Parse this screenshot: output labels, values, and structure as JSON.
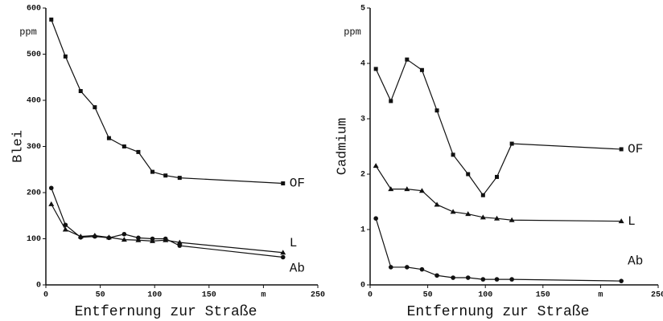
{
  "chart_data": [
    {
      "type": "line",
      "ylabel": "Blei",
      "xlabel": "Entfernung zur Straße",
      "unit_label": "ppm",
      "x": [
        5,
        18,
        32,
        45,
        58,
        72,
        85,
        98,
        110,
        123,
        218
      ],
      "xlim": [
        0,
        250
      ],
      "xticks": [
        0,
        50,
        100,
        150,
        {
          "value": 200,
          "label": "m"
        },
        250
      ],
      "ylim": [
        0,
        600
      ],
      "yticks": [
        0,
        100,
        200,
        300,
        400,
        500,
        600
      ],
      "series": [
        {
          "name": "OF",
          "color": "#111111",
          "marker": "square",
          "values": [
            575,
            495,
            420,
            385,
            318,
            300,
            288,
            245,
            237,
            232,
            220
          ]
        },
        {
          "name": "L",
          "color": "#111111",
          "marker": "triangle",
          "values": [
            175,
            120,
            105,
            107,
            103,
            98,
            97,
            95,
            97,
            92,
            70
          ]
        },
        {
          "name": "Ab",
          "color": "#111111",
          "marker": "circle",
          "values": [
            210,
            130,
            103,
            105,
            102,
            110,
            102,
            100,
            100,
            85,
            60
          ]
        }
      ]
    },
    {
      "type": "line",
      "ylabel": "Cadmium",
      "xlabel": "Entfernung zur Straße",
      "unit_label": "ppm",
      "x": [
        5,
        18,
        32,
        45,
        58,
        72,
        85,
        98,
        110,
        123,
        218
      ],
      "xlim": [
        0,
        250
      ],
      "xticks": [
        0,
        50,
        100,
        150,
        {
          "value": 200,
          "label": "m"
        },
        250
      ],
      "ylim": [
        0,
        5
      ],
      "yticks": [
        0,
        1,
        2,
        3,
        4,
        5
      ],
      "series": [
        {
          "name": "OF",
          "color": "#111111",
          "marker": "square",
          "values": [
            3.9,
            3.32,
            4.07,
            3.88,
            3.15,
            2.35,
            2.0,
            1.62,
            1.95,
            2.55,
            2.45
          ]
        },
        {
          "name": "L",
          "color": "#111111",
          "marker": "triangle",
          "values": [
            2.15,
            1.73,
            1.73,
            1.7,
            1.45,
            1.32,
            1.28,
            1.22,
            1.2,
            1.17,
            1.15
          ]
        },
        {
          "name": "Ab",
          "color": "#111111",
          "marker": "circle",
          "values": [
            1.2,
            0.32,
            0.32,
            0.28,
            0.17,
            0.13,
            0.13,
            0.1,
            0.1,
            0.1,
            0.07
          ]
        }
      ]
    }
  ]
}
